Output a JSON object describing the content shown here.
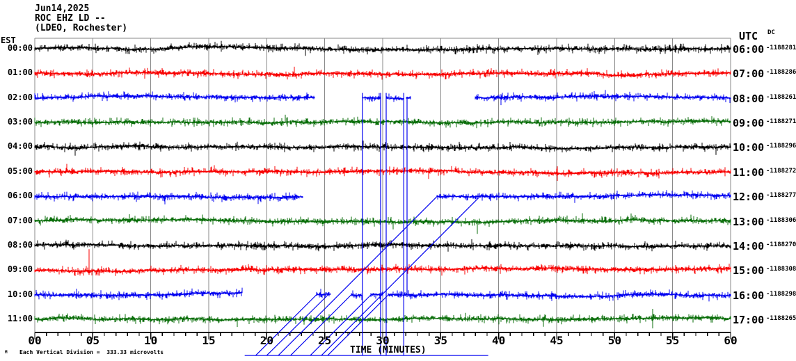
{
  "header": {
    "date": "Jun14,2025",
    "station": "ROC EHZ LD --",
    "location": "(LDEO, Rochester)"
  },
  "axis_headers": {
    "left_timezone": "EST",
    "right_timezone": "UTC",
    "dc_header": "DC"
  },
  "chart_data": {
    "type": "line",
    "title": "Helicorder seismogram ROC EHZ LD -- (LDEO, Rochester) Jun14,2025",
    "xlabel": "TIME (MINUTES)",
    "x_range": [
      0,
      60
    ],
    "x_major_tick": 5,
    "x_minor_tick": 1,
    "x_tick_labels": [
      "00",
      "05",
      "10",
      "15",
      "20",
      "25",
      "30",
      "35",
      "40",
      "45",
      "50",
      "55",
      "60"
    ],
    "grid": "vertical gray lines every 5 minutes",
    "legend_position": "none",
    "grid_color": "#8a8a8a",
    "axis_color": "#000000",
    "trace_colors": {
      "black": "#000000",
      "red": "#f80000",
      "blue": "#0000f0",
      "green": "#0a6e0a"
    },
    "rows": [
      {
        "est": "00:00",
        "utc": "06:00",
        "dc": "-1188281",
        "color": "black",
        "segments": [
          [
            0,
            60
          ]
        ]
      },
      {
        "est": "01:00",
        "utc": "07:00",
        "dc": "-1188286",
        "color": "red",
        "segments": [
          [
            0,
            60
          ]
        ]
      },
      {
        "est": "02:00",
        "utc": "08:00",
        "dc": "-1188261",
        "color": "blue",
        "segments": [
          [
            0,
            24.1
          ],
          [
            28.25,
            29.8
          ],
          [
            30.3,
            31.8
          ],
          [
            32.05,
            32.4
          ],
          [
            38,
            60
          ]
        ]
      },
      {
        "est": "03:00",
        "utc": "09:00",
        "dc": "-1188271",
        "color": "green",
        "segments": [
          [
            0,
            60
          ]
        ]
      },
      {
        "est": "04:00",
        "utc": "10:00",
        "dc": "-1188296",
        "color": "black",
        "segments": [
          [
            0,
            60
          ]
        ]
      },
      {
        "est": "05:00",
        "utc": "11:00",
        "dc": "-1188272",
        "color": "red",
        "segments": [
          [
            0,
            60
          ]
        ]
      },
      {
        "est": "06:00",
        "utc": "12:00",
        "dc": "-1188277",
        "color": "blue",
        "segments": [
          [
            0,
            23.1
          ],
          [
            34.7,
            60
          ]
        ]
      },
      {
        "est": "07:00",
        "utc": "13:00",
        "dc": "-1188306",
        "color": "green",
        "segments": [
          [
            0,
            60
          ]
        ]
      },
      {
        "est": "08:00",
        "utc": "14:00",
        "dc": "-1188270",
        "color": "black",
        "segments": [
          [
            0,
            60
          ]
        ]
      },
      {
        "est": "09:00",
        "utc": "15:00",
        "dc": "-1188308",
        "color": "red",
        "segments": [
          [
            0,
            60
          ]
        ],
        "spikes": [
          {
            "minute": 4.68,
            "up": 30,
            "down": 7
          }
        ]
      },
      {
        "est": "10:00",
        "utc": "16:00",
        "dc": "-1188298",
        "color": "blue",
        "segments": [
          [
            0,
            17.9
          ],
          [
            24.3,
            25.5
          ],
          [
            27.3,
            28.2
          ],
          [
            29.0,
            30.0
          ],
          [
            30.5,
            60
          ]
        ]
      },
      {
        "est": "11:00",
        "utc": "17:00",
        "dc": "-1188265",
        "color": "green",
        "segments": [
          [
            0,
            60
          ]
        ]
      }
    ],
    "artifacts": {
      "color": "blue",
      "bottom_run": {
        "minutes": [
          18.1,
          39.1
        ],
        "row": 12.47
      },
      "vertical_lines": [
        {
          "minute": 28.25,
          "rows": [
            1.8,
            12.47
          ]
        },
        {
          "minute": 29.82,
          "rows": [
            1.8,
            12.47
          ]
        },
        {
          "minute": 30.3,
          "rows": [
            1.8,
            12.47
          ]
        },
        {
          "minute": 31.82,
          "rows": [
            1.8,
            12.47
          ]
        },
        {
          "minute": 32.1,
          "rows": [
            1.95,
            10.1
          ]
        }
      ],
      "diagonal_lines": [
        {
          "from": [
            21.0,
            12.47
          ],
          "to": [
            34.7,
            6.0
          ]
        },
        {
          "from": [
            24.72,
            12.47
          ],
          "to": [
            38.4,
            6.0
          ]
        },
        {
          "from": [
            19.05,
            12.47
          ],
          "to": [
            24.3,
            10.0
          ]
        },
        {
          "from": [
            20.0,
            12.47
          ],
          "to": [
            25.3,
            10.0
          ]
        },
        {
          "from": [
            22.06,
            12.47
          ],
          "to": [
            27.3,
            10.0
          ]
        },
        {
          "from": [
            23.76,
            12.47
          ],
          "to": [
            29.0,
            10.0
          ]
        },
        {
          "from": [
            25.26,
            12.47
          ],
          "to": [
            30.5,
            10.0
          ]
        }
      ]
    },
    "amplitude_scale_note": "Each Vertical Division =  333.33 microvolts"
  },
  "footer": {
    "time_axis_label": "TIME (MINUTES)",
    "scale_note": "Each Vertical Division =  333.33 microvolts",
    "corner_mark": "M"
  }
}
